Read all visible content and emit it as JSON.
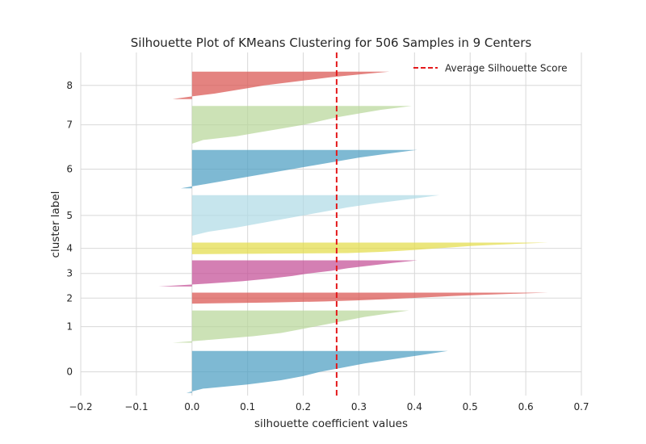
{
  "chart_data": {
    "type": "area",
    "title": "Silhouette Plot of KMeans Clustering for 506 Samples in 9 Centers",
    "xlabel": "silhouette coefficient values",
    "ylabel": "cluster label",
    "xlim": [
      -0.2,
      0.7
    ],
    "xticks": [
      "−0.2",
      "−0.1",
      "0.0",
      "0.1",
      "0.2",
      "0.3",
      "0.4",
      "0.5",
      "0.6",
      "0.7"
    ],
    "grid": true,
    "average_silhouette_score": 0.26,
    "legend": {
      "label": "Average Silhouette Score",
      "position": "top-right"
    },
    "clusters": [
      {
        "label": "0",
        "y_range": [
          4,
          65
        ],
        "max": 0.46,
        "min": -0.01,
        "shape": [
          0.46,
          0.41,
          0.36,
          0.31,
          0.27,
          0.23,
          0.2,
          0.16,
          0.1,
          0.02,
          -0.01
        ],
        "color": "#4c9ec2"
      },
      {
        "label": "1",
        "y_range": [
          77,
          124
        ],
        "max": 0.39,
        "min": -0.035,
        "shape": [
          0.39,
          0.35,
          0.31,
          0.28,
          0.25,
          0.22,
          0.19,
          0.16,
          0.11,
          0.04,
          -0.035
        ],
        "color": "#b8d79a"
      },
      {
        "label": "2",
        "y_range": [
          134,
          150
        ],
        "max": 0.64,
        "min": 0.0,
        "shape": [
          0.64,
          0.58,
          0.52,
          0.47,
          0.43,
          0.39,
          0.35,
          0.3,
          0.24,
          0.14,
          0.0
        ],
        "color": "#d9534f"
      },
      {
        "label": "3",
        "y_range": [
          159,
          197
        ],
        "max": 0.405,
        "min": -0.06,
        "shape": [
          0.405,
          0.36,
          0.32,
          0.28,
          0.25,
          0.21,
          0.18,
          0.14,
          0.09,
          0.02,
          -0.06
        ],
        "color": "#c44e96"
      },
      {
        "label": "4",
        "y_range": [
          206,
          223
        ],
        "max": 0.64,
        "min": 0.0,
        "shape": [
          0.64,
          0.59,
          0.54,
          0.5,
          0.47,
          0.44,
          0.41,
          0.38,
          0.34,
          0.28,
          0.0
        ],
        "color": "#e3dc4a"
      },
      {
        "label": "5",
        "y_range": [
          233,
          292
        ],
        "max": 0.445,
        "min": 0.0,
        "shape": [
          0.445,
          0.39,
          0.33,
          0.28,
          0.24,
          0.2,
          0.16,
          0.12,
          0.08,
          0.03,
          0.0
        ],
        "color": "#b0dbe6"
      },
      {
        "label": "6",
        "y_range": [
          302,
          358
        ],
        "max": 0.405,
        "min": -0.02,
        "shape": [
          0.405,
          0.35,
          0.3,
          0.26,
          0.22,
          0.18,
          0.14,
          0.1,
          0.06,
          0.02,
          -0.02
        ],
        "color": "#4c9ec2"
      },
      {
        "label": "7",
        "y_range": [
          367,
          422
        ],
        "max": 0.395,
        "min": 0.0,
        "shape": [
          0.395,
          0.34,
          0.3,
          0.26,
          0.23,
          0.2,
          0.16,
          0.12,
          0.08,
          0.02,
          0.0
        ],
        "color": "#b8d79a"
      },
      {
        "label": "8",
        "y_range": [
          432,
          472
        ],
        "max": 0.355,
        "min": -0.035,
        "shape": [
          0.355,
          0.3,
          0.25,
          0.21,
          0.17,
          0.13,
          0.1,
          0.07,
          0.04,
          0.0,
          -0.035
        ],
        "color": "#d9534f"
      }
    ]
  }
}
